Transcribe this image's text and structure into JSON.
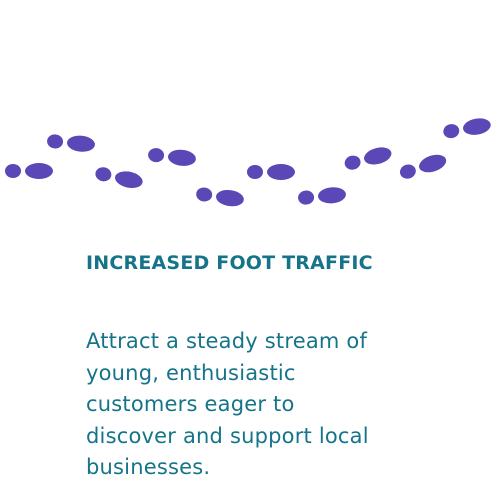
{
  "colors": {
    "footprint": "#5b47b5",
    "heading": "#16748a",
    "body": "#16748a",
    "background": "#ffffff"
  },
  "graphic": {
    "icon": "footprint-trail-icon",
    "footprint_count": 12
  },
  "heading": "INCREASED FOOT TRAFFIC",
  "body": {
    "lines": [
      "Attract a steady stream of",
      "young, enthusiastic",
      "customers eager to",
      "discover and support local",
      "businesses."
    ]
  }
}
